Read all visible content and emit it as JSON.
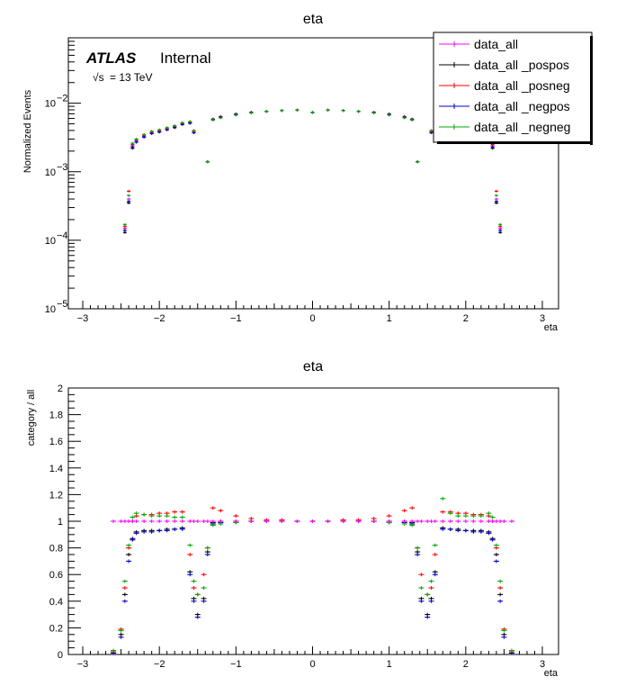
{
  "top_panel": {
    "title": "eta",
    "ylabel": "Normalized Events",
    "xlabel": "eta",
    "atlas_label": "ATLAS",
    "internal_label": "Internal",
    "energy_label": "= 13 TeV",
    "energy_sqrt_s": "√s",
    "xticks": [
      "−3",
      "−2",
      "−1",
      "0",
      "1",
      "2",
      "3"
    ],
    "ytick_bases": [
      "10",
      "10",
      "10",
      "10"
    ],
    "ytick_exps": [
      "−5",
      "−4",
      "−3",
      "−2"
    ]
  },
  "bottom_panel": {
    "title": "eta",
    "ylabel": "category / all",
    "xlabel": "eta",
    "xticks": [
      "−3",
      "−2",
      "−1",
      "0",
      "1",
      "2",
      "3"
    ],
    "yticks": [
      "0",
      "0.2",
      "0.4",
      "0.6",
      "0.8",
      "1",
      "1.2",
      "1.4",
      "1.6",
      "1.8",
      "2"
    ]
  },
  "legend": {
    "entries": [
      {
        "label": "data_all",
        "color": "#ff00ff"
      },
      {
        "label": "data_all _pospos",
        "color": "#000000"
      },
      {
        "label": "data_all _posneg",
        "color": "#ff0000"
      },
      {
        "label": "data_all _negpos",
        "color": "#0000cc"
      },
      {
        "label": "data_all _negneg",
        "color": "#00aa00"
      }
    ]
  },
  "chart_data": [
    {
      "type": "scatter",
      "title": "eta",
      "xlabel": "eta",
      "ylabel": "Normalized Events",
      "xlim": [
        -3.2,
        3.2
      ],
      "ylim": [
        1e-05,
        0.09
      ],
      "yscale": "log",
      "grid": false,
      "legend_position": "top-right",
      "x": [
        -2.45,
        -2.4,
        -2.35,
        -2.3,
        -2.2,
        -2.1,
        -2.0,
        -1.9,
        -1.8,
        -1.7,
        -1.6,
        -1.55,
        -1.37,
        -1.3,
        -1.2,
        -1.0,
        -0.8,
        -0.6,
        -0.4,
        -0.2,
        0.0,
        0.2,
        0.4,
        0.6,
        0.8,
        1.0,
        1.2,
        1.3,
        1.37,
        1.55,
        1.6,
        1.7,
        1.8,
        1.9,
        2.0,
        2.1,
        2.2,
        2.3,
        2.35,
        2.4,
        2.45
      ],
      "series": [
        {
          "name": "data_all",
          "color": "#ff00ff",
          "values": [
            0.00015,
            0.0004,
            0.0024,
            0.0028,
            0.0033,
            0.0037,
            0.0039,
            0.0042,
            0.0045,
            0.005,
            0.0052,
            0.0038,
            0.0014,
            0.0058,
            0.0062,
            0.0068,
            0.0073,
            0.0076,
            0.0078,
            0.0079,
            0.0074,
            0.0079,
            0.0078,
            0.0076,
            0.0073,
            0.0068,
            0.0062,
            0.0058,
            0.0014,
            0.0038,
            0.0052,
            0.005,
            0.0045,
            0.0042,
            0.0039,
            0.0037,
            0.0033,
            0.0028,
            0.0024,
            0.0004,
            0.00015
          ]
        },
        {
          "name": "data_all _pospos",
          "color": "#000000",
          "values": [
            0.00013,
            0.00035,
            0.0022,
            0.0027,
            0.0032,
            0.0036,
            0.0038,
            0.0041,
            0.0044,
            0.0049,
            0.0051,
            0.0037,
            0.0014,
            0.0057,
            0.0062,
            0.0068,
            0.0073,
            0.0076,
            0.0078,
            0.0079,
            0.0073,
            0.0079,
            0.0078,
            0.0076,
            0.0073,
            0.0068,
            0.0062,
            0.0057,
            0.0014,
            0.0037,
            0.0051,
            0.0049,
            0.0044,
            0.0041,
            0.0038,
            0.0036,
            0.0032,
            0.0027,
            0.0022,
            0.00035,
            0.00013
          ]
        },
        {
          "name": "data_all _posneg",
          "color": "#ff0000",
          "values": [
            0.00016,
            0.00052,
            0.0025,
            0.0029,
            0.0034,
            0.0038,
            0.004,
            0.0043,
            0.0046,
            0.0051,
            0.0053,
            0.0039,
            0.0014,
            0.0059,
            0.0064,
            0.007,
            0.0074,
            0.0076,
            0.0078,
            0.008,
            0.0074,
            0.008,
            0.0078,
            0.0076,
            0.0074,
            0.007,
            0.0064,
            0.0059,
            0.0014,
            0.0039,
            0.0053,
            0.0051,
            0.0046,
            0.0043,
            0.004,
            0.0038,
            0.0034,
            0.0029,
            0.0025,
            0.00052,
            0.00016
          ]
        },
        {
          "name": "data_all _negpos",
          "color": "#0000cc",
          "values": [
            0.00014,
            0.00037,
            0.0023,
            0.0027,
            0.0032,
            0.0036,
            0.0038,
            0.0041,
            0.0044,
            0.0049,
            0.0051,
            0.0037,
            0.0014,
            0.0058,
            0.0063,
            0.0069,
            0.0073,
            0.0076,
            0.0078,
            0.0079,
            0.0073,
            0.0079,
            0.0078,
            0.0076,
            0.0073,
            0.0069,
            0.0063,
            0.0058,
            0.0014,
            0.0037,
            0.0051,
            0.0049,
            0.0044,
            0.0041,
            0.0038,
            0.0036,
            0.0032,
            0.0027,
            0.0023,
            0.00037,
            0.00014
          ]
        },
        {
          "name": "data_all _negneg",
          "color": "#00aa00",
          "values": [
            0.00017,
            0.00045,
            0.0026,
            0.003,
            0.0035,
            0.0039,
            0.0041,
            0.0044,
            0.0047,
            0.0052,
            0.0054,
            0.004,
            0.0014,
            0.0057,
            0.0061,
            0.0067,
            0.0072,
            0.0076,
            0.0078,
            0.0079,
            0.0074,
            0.0079,
            0.0078,
            0.0076,
            0.0072,
            0.0067,
            0.0061,
            0.0057,
            0.0014,
            0.004,
            0.0054,
            0.0052,
            0.0047,
            0.0044,
            0.0041,
            0.0039,
            0.0035,
            0.003,
            0.0026,
            0.00045,
            0.00017
          ]
        }
      ]
    },
    {
      "type": "scatter",
      "title": "eta",
      "xlabel": "eta",
      "ylabel": "category / all",
      "xlim": [
        -3.2,
        3.2
      ],
      "ylim": [
        0,
        2
      ],
      "grid": false,
      "x": [
        -2.6,
        -2.5,
        -2.45,
        -2.4,
        -2.35,
        -2.3,
        -2.2,
        -2.1,
        -2.0,
        -1.9,
        -1.8,
        -1.7,
        -1.6,
        -1.55,
        -1.5,
        -1.42,
        -1.37,
        -1.3,
        -1.2,
        -1.0,
        -0.8,
        -0.6,
        -0.4,
        -0.2,
        0.0,
        0.2,
        0.4,
        0.6,
        0.8,
        1.0,
        1.2,
        1.3,
        1.37,
        1.42,
        1.5,
        1.55,
        1.6,
        1.7,
        1.8,
        1.9,
        2.0,
        2.1,
        2.2,
        2.3,
        2.35,
        2.4,
        2.45,
        2.5,
        2.6
      ],
      "series": [
        {
          "name": "data_all _pospos",
          "color": "#000000",
          "values": [
            0.02,
            0.15,
            0.45,
            0.75,
            0.87,
            0.92,
            0.93,
            0.93,
            0.93,
            0.94,
            0.94,
            0.95,
            0.62,
            0.42,
            0.3,
            0.42,
            0.77,
            0.99,
            1.0,
            1.0,
            1.0,
            1.0,
            1.0,
            1.0,
            1.0,
            1.0,
            1.0,
            1.0,
            1.0,
            1.0,
            1.0,
            0.99,
            0.77,
            0.42,
            0.3,
            0.42,
            0.62,
            0.95,
            0.94,
            0.94,
            0.93,
            0.93,
            0.93,
            0.92,
            0.87,
            0.75,
            0.45,
            0.15,
            0.02
          ]
        },
        {
          "name": "data_all _posneg",
          "color": "#ff0000",
          "values": [
            0.02,
            0.19,
            0.5,
            0.8,
            1.0,
            1.04,
            1.05,
            1.05,
            1.06,
            1.06,
            1.07,
            1.07,
            0.75,
            0.5,
            0.45,
            0.6,
            0.8,
            1.1,
            1.08,
            1.04,
            1.02,
            1.01,
            1.01,
            1.0,
            1.0,
            1.0,
            1.01,
            1.01,
            1.02,
            1.04,
            1.08,
            1.1,
            0.8,
            0.6,
            0.45,
            0.5,
            0.75,
            1.07,
            1.07,
            1.06,
            1.06,
            1.05,
            1.05,
            1.04,
            1.0,
            0.8,
            0.5,
            0.19,
            0.02
          ]
        },
        {
          "name": "data_all _negpos",
          "color": "#0000cc",
          "values": [
            0.01,
            0.13,
            0.4,
            0.7,
            0.86,
            0.91,
            0.92,
            0.92,
            0.93,
            0.93,
            0.94,
            0.94,
            0.6,
            0.4,
            0.28,
            0.4,
            0.75,
            0.98,
            0.99,
            0.99,
            1.0,
            1.0,
            1.0,
            1.0,
            1.0,
            1.0,
            1.0,
            1.0,
            1.0,
            0.99,
            0.99,
            0.98,
            0.75,
            0.4,
            0.28,
            0.4,
            0.6,
            0.94,
            0.94,
            0.93,
            0.93,
            0.92,
            0.92,
            0.91,
            0.86,
            0.7,
            0.4,
            0.13,
            0.01
          ]
        },
        {
          "name": "data_all _negneg",
          "color": "#00aa00",
          "values": [
            0.03,
            0.18,
            0.55,
            0.82,
            1.03,
            1.06,
            1.05,
            1.04,
            1.04,
            1.04,
            1.03,
            1.03,
            0.82,
            0.55,
            0.45,
            0.5,
            0.8,
            0.97,
            0.98,
            0.99,
            1.0,
            1.0,
            1.0,
            1.0,
            1.0,
            1.0,
            1.0,
            1.0,
            1.0,
            0.99,
            0.98,
            0.97,
            0.8,
            0.5,
            0.45,
            0.55,
            0.82,
            1.17,
            1.06,
            1.04,
            1.04,
            1.04,
            1.04,
            1.06,
            1.03,
            0.82,
            0.55,
            0.18,
            0.03
          ]
        },
        {
          "name": "data_all",
          "color": "#ff00ff",
          "values": [
            1,
            1,
            1,
            1,
            1,
            1,
            1,
            1,
            1,
            1,
            1,
            1,
            1,
            1,
            1,
            1,
            1,
            1,
            1,
            1,
            1,
            1,
            1,
            1,
            1,
            1,
            1,
            1,
            1,
            1,
            1,
            1,
            1,
            1,
            1,
            1,
            1,
            1,
            1,
            1,
            1,
            1,
            1,
            1,
            1,
            1,
            1,
            1,
            1
          ]
        }
      ]
    }
  ]
}
